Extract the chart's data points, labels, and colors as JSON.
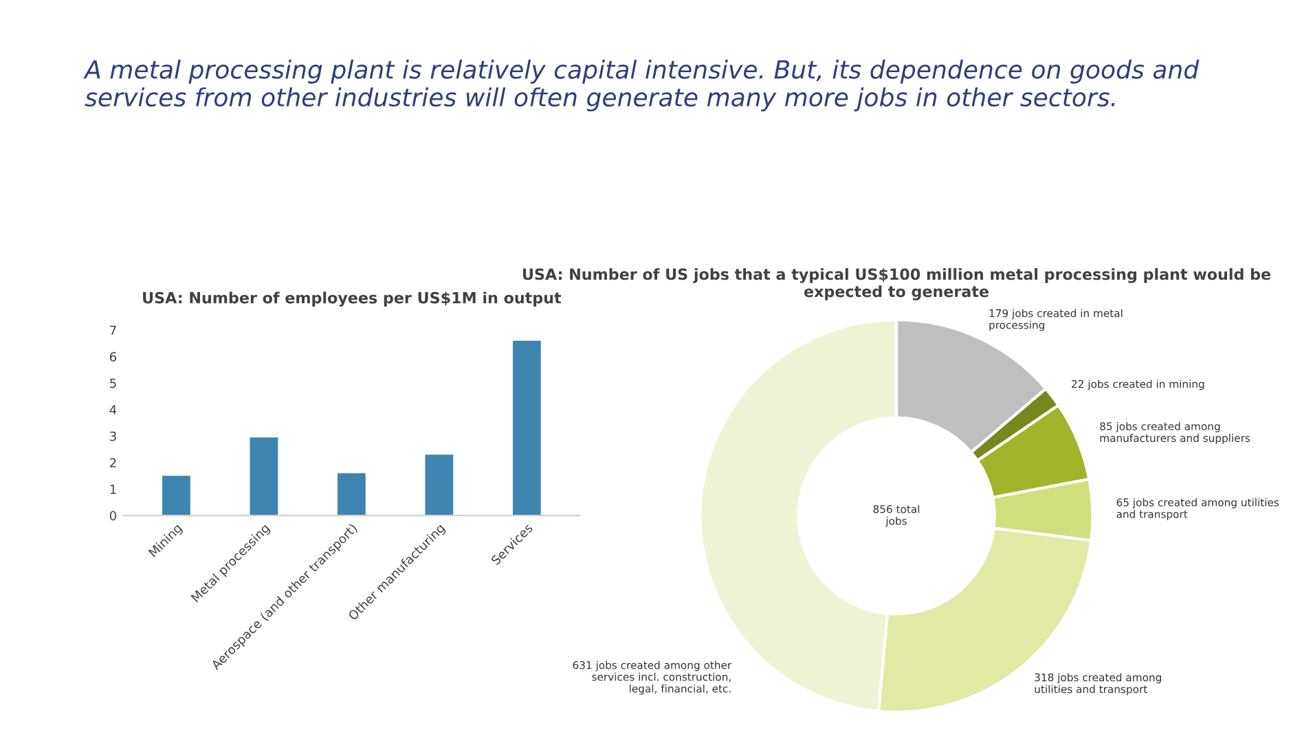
{
  "chart_data": [
    {
      "type": "other",
      "title": "A metal processing plant is relatively capital intensive. But, its dependence on goods and services from other industries will often generate many more jobs in other sectors."
    },
    {
      "type": "bar",
      "title": "USA: Number of employees per US$1M in output",
      "categories": [
        "Mining",
        "Metal processing",
        "Aerospace (and other transport)",
        "Other manufacturing",
        "Services"
      ],
      "values": [
        1.5,
        2.95,
        1.6,
        2.3,
        6.6
      ],
      "color": "#3d85b0",
      "ylim": [
        0,
        7
      ],
      "yticks": [
        0,
        1,
        2,
        3,
        4,
        5,
        6,
        7
      ],
      "grid": false
    },
    {
      "type": "donut",
      "title": "USA: Number of US jobs that a typical US$100 million metal processing plant would be expected to generate",
      "categories": [
        "179 jobs created in metal\nprocessing",
        "22 jobs created in mining",
        "85 jobs created among\nmanufacturers and suppliers",
        "65 jobs created among utilities\nand transport",
        "318 jobs created among\nutilities and transport",
        "631 jobs created among other\nservices incl. construction,\nlegal, financial, etc."
      ],
      "values": [
        179,
        22,
        85,
        65,
        318,
        631
      ],
      "colors": [
        "#bfbfbf",
        "#76881c",
        "#a2b42a",
        "#d0de7c",
        "#e1e9a4",
        "#eef3d4"
      ],
      "annotations": [
        "856 total\njobs"
      ]
    }
  ]
}
